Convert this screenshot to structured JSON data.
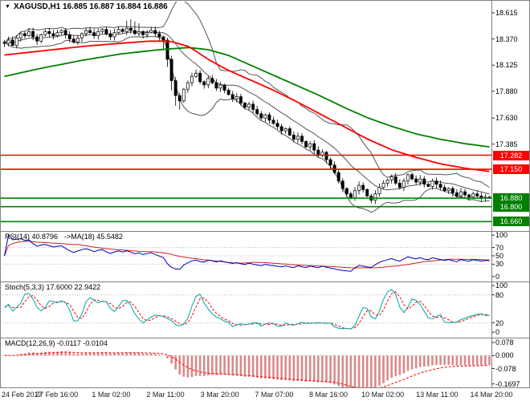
{
  "window": {
    "symbol_period": "XAGUSD,H1",
    "open": "16.885",
    "high": "16.887",
    "low": "16.884",
    "close": "16.886",
    "title_text": "XAGUSD,H1 16.885 16.887 16.884 16.886"
  },
  "icons": {
    "dropdown": "▼"
  },
  "colors": {
    "background": "#ffffff",
    "border": "#808080",
    "candle_up": "#ffffff",
    "candle_down": "#000000",
    "candle_outline": "#000000",
    "bollinger": "#555555",
    "level_dotted": "#b4b4b4"
  },
  "chart_data": {
    "type": "candlestick",
    "symbol": "XAGUSD",
    "timeframe": "H1",
    "title": "XAGUSD,H1 16.885 16.887 16.884 16.886",
    "price_ylim": [
      16.58,
      18.72
    ],
    "price_axis_ticks": [
      {
        "v": 18.615,
        "label": "18.615"
      },
      {
        "v": 18.37,
        "label": "18.370"
      },
      {
        "v": 18.125,
        "label": "18.125"
      },
      {
        "v": 17.88,
        "label": "17.880"
      },
      {
        "v": 17.63,
        "label": "17.630"
      },
      {
        "v": 17.385,
        "label": "17.385"
      }
    ],
    "x_tick_labels": [
      "24 Feb 2017",
      "27 Feb 16:00",
      "1 Mar 02:00",
      "2 Mar 11:00",
      "3 Mar 20:00",
      "7 Mar 07:00",
      "8 Mar 16:00",
      "10 Mar 02:00",
      "13 Mar 11:00",
      "14 Mar 20:00"
    ],
    "close": [
      18.33,
      18.36,
      18.31,
      18.38,
      18.42,
      18.4,
      18.44,
      18.39,
      18.35,
      18.41,
      18.44,
      18.42,
      18.4,
      18.43,
      18.45,
      18.41,
      18.37,
      18.34,
      18.38,
      18.42,
      18.45,
      18.43,
      18.4,
      18.44,
      18.46,
      18.42,
      18.39,
      18.43,
      18.46,
      18.44,
      18.47,
      18.45,
      18.42,
      18.44,
      18.41,
      18.43,
      18.45,
      18.42,
      18.39,
      18.36,
      18.18,
      17.98,
      17.84,
      17.79,
      17.9,
      17.96,
      18.02,
      18.05,
      17.97,
      17.94,
      18.0,
      17.96,
      17.91,
      17.94,
      17.89,
      17.85,
      17.81,
      17.83,
      17.77,
      17.73,
      17.76,
      17.71,
      17.67,
      17.63,
      17.66,
      17.61,
      17.58,
      17.55,
      17.51,
      17.53,
      17.47,
      17.43,
      17.46,
      17.41,
      17.36,
      17.39,
      17.33,
      17.28,
      17.31,
      17.24,
      17.19,
      17.12,
      17.04,
      16.97,
      16.92,
      16.88,
      16.95,
      17.0,
      16.96,
      16.9,
      16.86,
      16.92,
      16.98,
      17.02,
      17.05,
      17.08,
      17.02,
      16.98,
      17.04,
      17.1,
      17.06,
      17.03,
      17.06,
      17.01,
      16.99,
      17.04,
      17.01,
      16.98,
      16.95,
      16.97,
      16.93,
      16.9,
      16.94,
      16.91,
      16.89,
      16.92,
      16.9,
      16.88,
      16.89,
      16.886
    ],
    "bollinger": {
      "window": 13,
      "mult": 2.0
    },
    "ma_overlays": [
      {
        "name": "ma-red",
        "color": "#ff0000",
        "anchors": [
          [
            0,
            18.22
          ],
          [
            0.08,
            18.26
          ],
          [
            0.16,
            18.3
          ],
          [
            0.24,
            18.33
          ],
          [
            0.3,
            18.35
          ],
          [
            0.34,
            18.35
          ],
          [
            0.38,
            18.3
          ],
          [
            0.42,
            18.18
          ],
          [
            0.46,
            18.08
          ],
          [
            0.5,
            18.0
          ],
          [
            0.55,
            17.9
          ],
          [
            0.6,
            17.79
          ],
          [
            0.65,
            17.67
          ],
          [
            0.7,
            17.55
          ],
          [
            0.75,
            17.43
          ],
          [
            0.8,
            17.33
          ],
          [
            0.85,
            17.26
          ],
          [
            0.9,
            17.2
          ],
          [
            0.95,
            17.16
          ],
          [
            1,
            17.13
          ]
        ]
      },
      {
        "name": "ma-green",
        "color": "#008000",
        "anchors": [
          [
            0,
            18.02
          ],
          [
            0.08,
            18.1
          ],
          [
            0.16,
            18.17
          ],
          [
            0.24,
            18.23
          ],
          [
            0.32,
            18.27
          ],
          [
            0.38,
            18.29
          ],
          [
            0.42,
            18.27
          ],
          [
            0.46,
            18.22
          ],
          [
            0.5,
            18.14
          ],
          [
            0.55,
            18.04
          ],
          [
            0.6,
            17.94
          ],
          [
            0.65,
            17.84
          ],
          [
            0.7,
            17.73
          ],
          [
            0.75,
            17.63
          ],
          [
            0.8,
            17.55
          ],
          [
            0.85,
            17.48
          ],
          [
            0.9,
            17.43
          ],
          [
            0.95,
            17.39
          ],
          [
            1,
            17.36
          ]
        ]
      }
    ],
    "horizontal_lines": [
      {
        "price": 17.282,
        "label": "17.282",
        "color": "#ff0000"
      },
      {
        "price": 17.15,
        "label": "17.150",
        "color": "#ff0000"
      },
      {
        "price": 16.88,
        "label": "16.880",
        "color": "#008000"
      },
      {
        "price": 16.8,
        "label": "16.800",
        "color": "#008000"
      },
      {
        "price": 16.66,
        "label": "16.660",
        "color": "#008000"
      }
    ],
    "indicators": {
      "rsi": {
        "label": "RSI(14) 40.8796",
        "ma_label": "->MA(18) 45.5482",
        "period": 14,
        "ma_period": 18,
        "current": 40.8796,
        "ma_current": 45.5482,
        "ylim": [
          -10,
          108
        ],
        "ticks": [
          {
            "v": 100,
            "label": "100"
          },
          {
            "v": 70,
            "label": "70"
          },
          {
            "v": 50,
            "label": "50"
          },
          {
            "v": 30,
            "label": "30"
          },
          {
            "v": 0,
            "label": "0"
          }
        ],
        "levels": [
          70,
          50,
          30
        ],
        "color": "#0000b4",
        "ma_color": "#cc2222"
      },
      "stoch": {
        "label": "Stoch(5,3,3) 17.6000 22.9422",
        "params": [
          5,
          3,
          3
        ],
        "k_current": 17.6,
        "d_current": 22.9422,
        "ylim": [
          -10,
          107
        ],
        "ticks": [
          {
            "v": 100,
            "label": "100"
          },
          {
            "v": 80,
            "label": "80"
          },
          {
            "v": 20,
            "label": "20"
          },
          {
            "v": 0,
            "label": "0"
          }
        ],
        "levels": [
          80,
          20
        ],
        "color": "#00a5a5",
        "signal_color": "#ff0000"
      },
      "macd": {
        "label": "MACD(12,26,9) -0.0117 -0.0104",
        "params": [
          12,
          26,
          9
        ],
        "macd_current": -0.0117,
        "signal_current": -0.0104,
        "ylim": [
          -0.19,
          0.102
        ],
        "ticks": [
          {
            "v": 0.078,
            "label": "0.078"
          },
          {
            "v": 0,
            "label": "0.000"
          },
          {
            "v": -0.078,
            "label": "-0.078"
          },
          {
            "v": -0.1697,
            "label": "-0.1697"
          }
        ],
        "levels": [
          0
        ],
        "hist_color": "#d98989",
        "signal_color": "#ff0000"
      }
    }
  }
}
